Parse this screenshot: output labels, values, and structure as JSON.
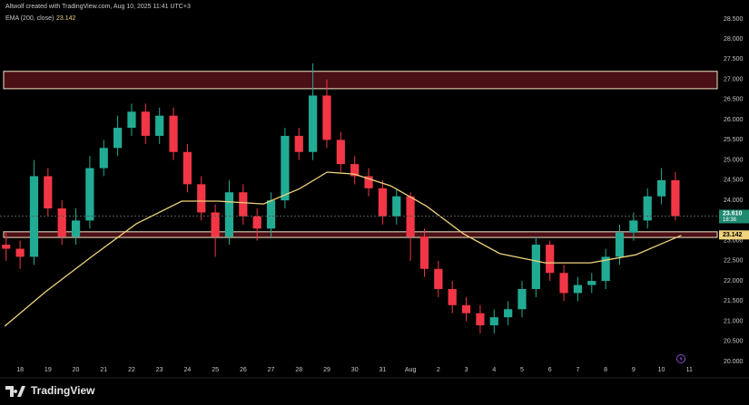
{
  "header": {
    "attribution": "Altwolf created with TradingView.com, Aug 10, 2025 11:41 UTC+3",
    "indicator": "EMA (200, close)",
    "indicator_value": "23.142"
  },
  "footer": {
    "brand": "TradingView"
  },
  "chart_data": {
    "type": "candlestick",
    "x": [
      -0.5,
      0,
      0.5,
      1,
      1.5,
      2,
      2.5,
      3,
      3.5,
      4,
      4.5,
      5,
      5.5,
      6,
      6.5,
      7,
      7.5,
      8,
      8.5,
      9,
      9.5,
      10,
      10.5,
      11,
      11.5,
      12,
      12.5,
      13,
      13.5,
      14,
      14.5,
      15,
      15.5,
      16,
      16.5,
      17,
      17.5,
      18,
      18.5,
      19,
      19.5,
      20,
      20.5,
      21,
      21.5,
      22,
      22.5,
      23,
      23.5
    ],
    "open": [
      22.9,
      22.8,
      22.6,
      24.6,
      23.8,
      23.1,
      23.5,
      24.8,
      25.3,
      25.8,
      26.2,
      25.6,
      26.1,
      25.2,
      24.4,
      23.7,
      23.1,
      24.2,
      23.6,
      23.3,
      24.0,
      25.6,
      25.2,
      26.6,
      25.5,
      24.9,
      24.6,
      24.3,
      23.6,
      24.1,
      23.1,
      22.3,
      21.8,
      21.4,
      21.2,
      20.9,
      21.1,
      21.3,
      21.8,
      22.9,
      22.2,
      21.7,
      21.9,
      22.0,
      22.6,
      23.2,
      23.5,
      24.1,
      24.5
    ],
    "high": [
      23.2,
      23.0,
      25.0,
      24.8,
      24.0,
      23.8,
      25.1,
      25.5,
      26.1,
      26.4,
      26.4,
      26.3,
      26.3,
      25.4,
      24.6,
      23.9,
      24.5,
      24.4,
      23.8,
      24.2,
      25.8,
      25.8,
      27.4,
      27.0,
      25.7,
      25.1,
      24.8,
      24.5,
      24.3,
      24.2,
      23.3,
      22.5,
      22.0,
      21.6,
      21.4,
      21.3,
      21.5,
      22.0,
      23.1,
      23.0,
      22.4,
      22.1,
      22.2,
      22.8,
      23.4,
      23.7,
      24.3,
      24.8,
      24.7
    ],
    "low": [
      22.5,
      22.3,
      22.4,
      23.6,
      22.9,
      22.9,
      23.3,
      24.6,
      25.1,
      25.6,
      25.4,
      25.4,
      25.0,
      24.2,
      23.5,
      22.6,
      22.9,
      23.4,
      23.0,
      23.1,
      23.8,
      25.0,
      25.0,
      25.3,
      24.7,
      24.4,
      24.1,
      23.4,
      23.4,
      22.5,
      22.1,
      21.6,
      21.2,
      21.0,
      20.7,
      20.7,
      20.9,
      21.1,
      21.6,
      22.0,
      21.5,
      21.5,
      21.7,
      21.8,
      22.4,
      23.0,
      23.3,
      23.9,
      23.5
    ],
    "close": [
      22.8,
      22.6,
      24.6,
      23.8,
      23.1,
      23.5,
      24.8,
      25.3,
      25.8,
      26.2,
      25.6,
      26.1,
      25.2,
      24.4,
      23.7,
      23.1,
      24.2,
      23.6,
      23.3,
      24.0,
      25.6,
      25.2,
      26.6,
      25.5,
      24.9,
      24.6,
      24.3,
      23.6,
      24.1,
      23.1,
      22.3,
      21.8,
      21.4,
      21.2,
      20.9,
      21.1,
      21.3,
      21.8,
      22.9,
      22.2,
      21.7,
      21.9,
      22.0,
      22.6,
      23.2,
      23.5,
      24.1,
      24.5,
      23.61
    ],
    "up_color": "#22ab94",
    "down_color": "#f23645",
    "ema": {
      "x": [
        -0.55,
        0.91,
        2.54,
        4.17,
        5.8,
        7.1,
        8.73,
        10.03,
        11.01,
        11.99,
        13.29,
        14.59,
        15.9,
        17.2,
        18.83,
        20.46,
        22.08,
        23.06,
        23.71
      ],
      "values": [
        20.88,
        21.73,
        22.59,
        23.42,
        23.98,
        23.98,
        23.91,
        24.29,
        24.7,
        24.65,
        24.36,
        23.85,
        23.17,
        22.68,
        22.45,
        22.45,
        22.65,
        22.94,
        23.13
      ],
      "color": "#f0d37a"
    },
    "zones": [
      {
        "low": 26.77,
        "high": 27.2,
        "fill": "#4b0f16",
        "stroke": "#f3e6c4"
      },
      {
        "low": 23.08,
        "high": 23.22,
        "fill": "#4b0f16",
        "stroke": "#f3e6c4"
      }
    ],
    "last_price": {
      "value": 23.61,
      "label": "23.610",
      "countdown": "18:38",
      "color": "#1f8a70"
    },
    "ema_last": {
      "value": 23.142,
      "label": "23.142",
      "color": "#f0d37a"
    },
    "xlim": [
      -0.72,
      25
    ],
    "xticks": [
      {
        "value": 0,
        "label": "18"
      },
      {
        "value": 1,
        "label": "19"
      },
      {
        "value": 2,
        "label": "20"
      },
      {
        "value": 3,
        "label": "21"
      },
      {
        "value": 4,
        "label": "22"
      },
      {
        "value": 5,
        "label": "23"
      },
      {
        "value": 6,
        "label": "24"
      },
      {
        "value": 7,
        "label": "25"
      },
      {
        "value": 8,
        "label": "26"
      },
      {
        "value": 9,
        "label": "27"
      },
      {
        "value": 10,
        "label": "28"
      },
      {
        "value": 11,
        "label": "29"
      },
      {
        "value": 12,
        "label": "30"
      },
      {
        "value": 13,
        "label": "31"
      },
      {
        "value": 14,
        "label": "Aug"
      },
      {
        "value": 15,
        "label": "2"
      },
      {
        "value": 16,
        "label": "3"
      },
      {
        "value": 17,
        "label": "4"
      },
      {
        "value": 18,
        "label": "5"
      },
      {
        "value": 19,
        "label": "6"
      },
      {
        "value": 20,
        "label": "7"
      },
      {
        "value": 21,
        "label": "8"
      },
      {
        "value": 22,
        "label": "9"
      },
      {
        "value": 23,
        "label": "10"
      },
      {
        "value": 24,
        "label": "11"
      }
    ],
    "ylim": [
      19.71,
      28.97
    ],
    "yticks": [
      {
        "value": 20,
        "label": "20.000"
      },
      {
        "value": 20.5,
        "label": "20.500"
      },
      {
        "value": 21,
        "label": "21.000"
      },
      {
        "value": 21.5,
        "label": "21.500"
      },
      {
        "value": 22,
        "label": "22.000"
      },
      {
        "value": 22.5,
        "label": "22.500"
      },
      {
        "value": 23,
        "label": "23.000"
      },
      {
        "value": 23.5,
        "label": "23.500"
      },
      {
        "value": 24,
        "label": "24.000"
      },
      {
        "value": 24.5,
        "label": "24.500"
      },
      {
        "value": 25,
        "label": "25.000"
      },
      {
        "value": 25.5,
        "label": "25.500"
      },
      {
        "value": 26,
        "label": "26.000"
      },
      {
        "value": 26.5,
        "label": "26.500"
      },
      {
        "value": 27,
        "label": "27.000"
      },
      {
        "value": 27.5,
        "label": "27.500"
      },
      {
        "value": 28,
        "label": "28.000"
      },
      {
        "value": 28.5,
        "label": "28.500"
      }
    ],
    "grid": false
  }
}
